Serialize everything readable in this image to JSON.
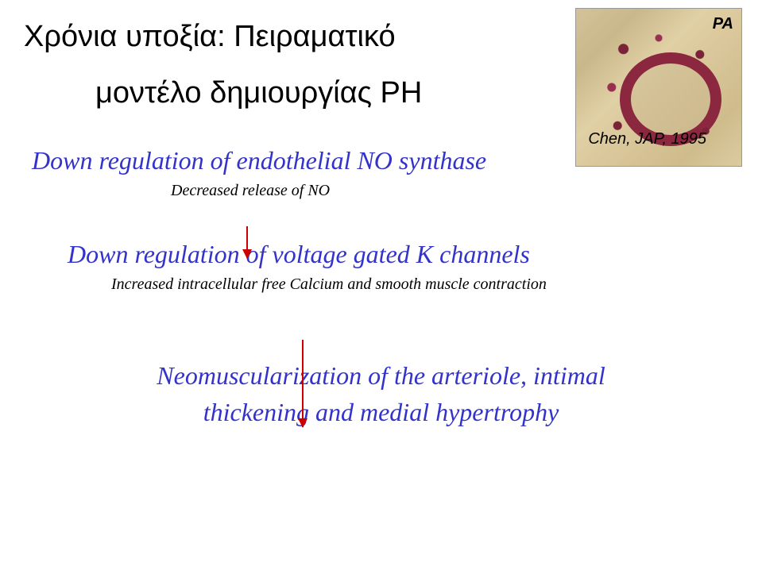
{
  "title": {
    "line1": "Χρόνια υποξία: Πειραματικό",
    "line2": "μοντέλο δημιουργίας PH"
  },
  "citation": "Chen, JAP, 1995",
  "histology": {
    "label": "PA"
  },
  "steps": {
    "step1": {
      "heading": "Down regulation of endothelial NO synthase",
      "sub": "Decreased release of NO"
    },
    "step2": {
      "heading": "Down regulation of voltage gated K channels",
      "sub": "Increased intracellular free Calcium and smooth muscle contraction"
    },
    "step3": {
      "line1": "Neomuscularization of the arteriole, intimal",
      "line2": "thickening and medial hypertrophy"
    }
  },
  "colors": {
    "heading_text": "#3333cc",
    "body_text": "#000000",
    "arrow": "#cc0000",
    "background": "#ffffff"
  }
}
